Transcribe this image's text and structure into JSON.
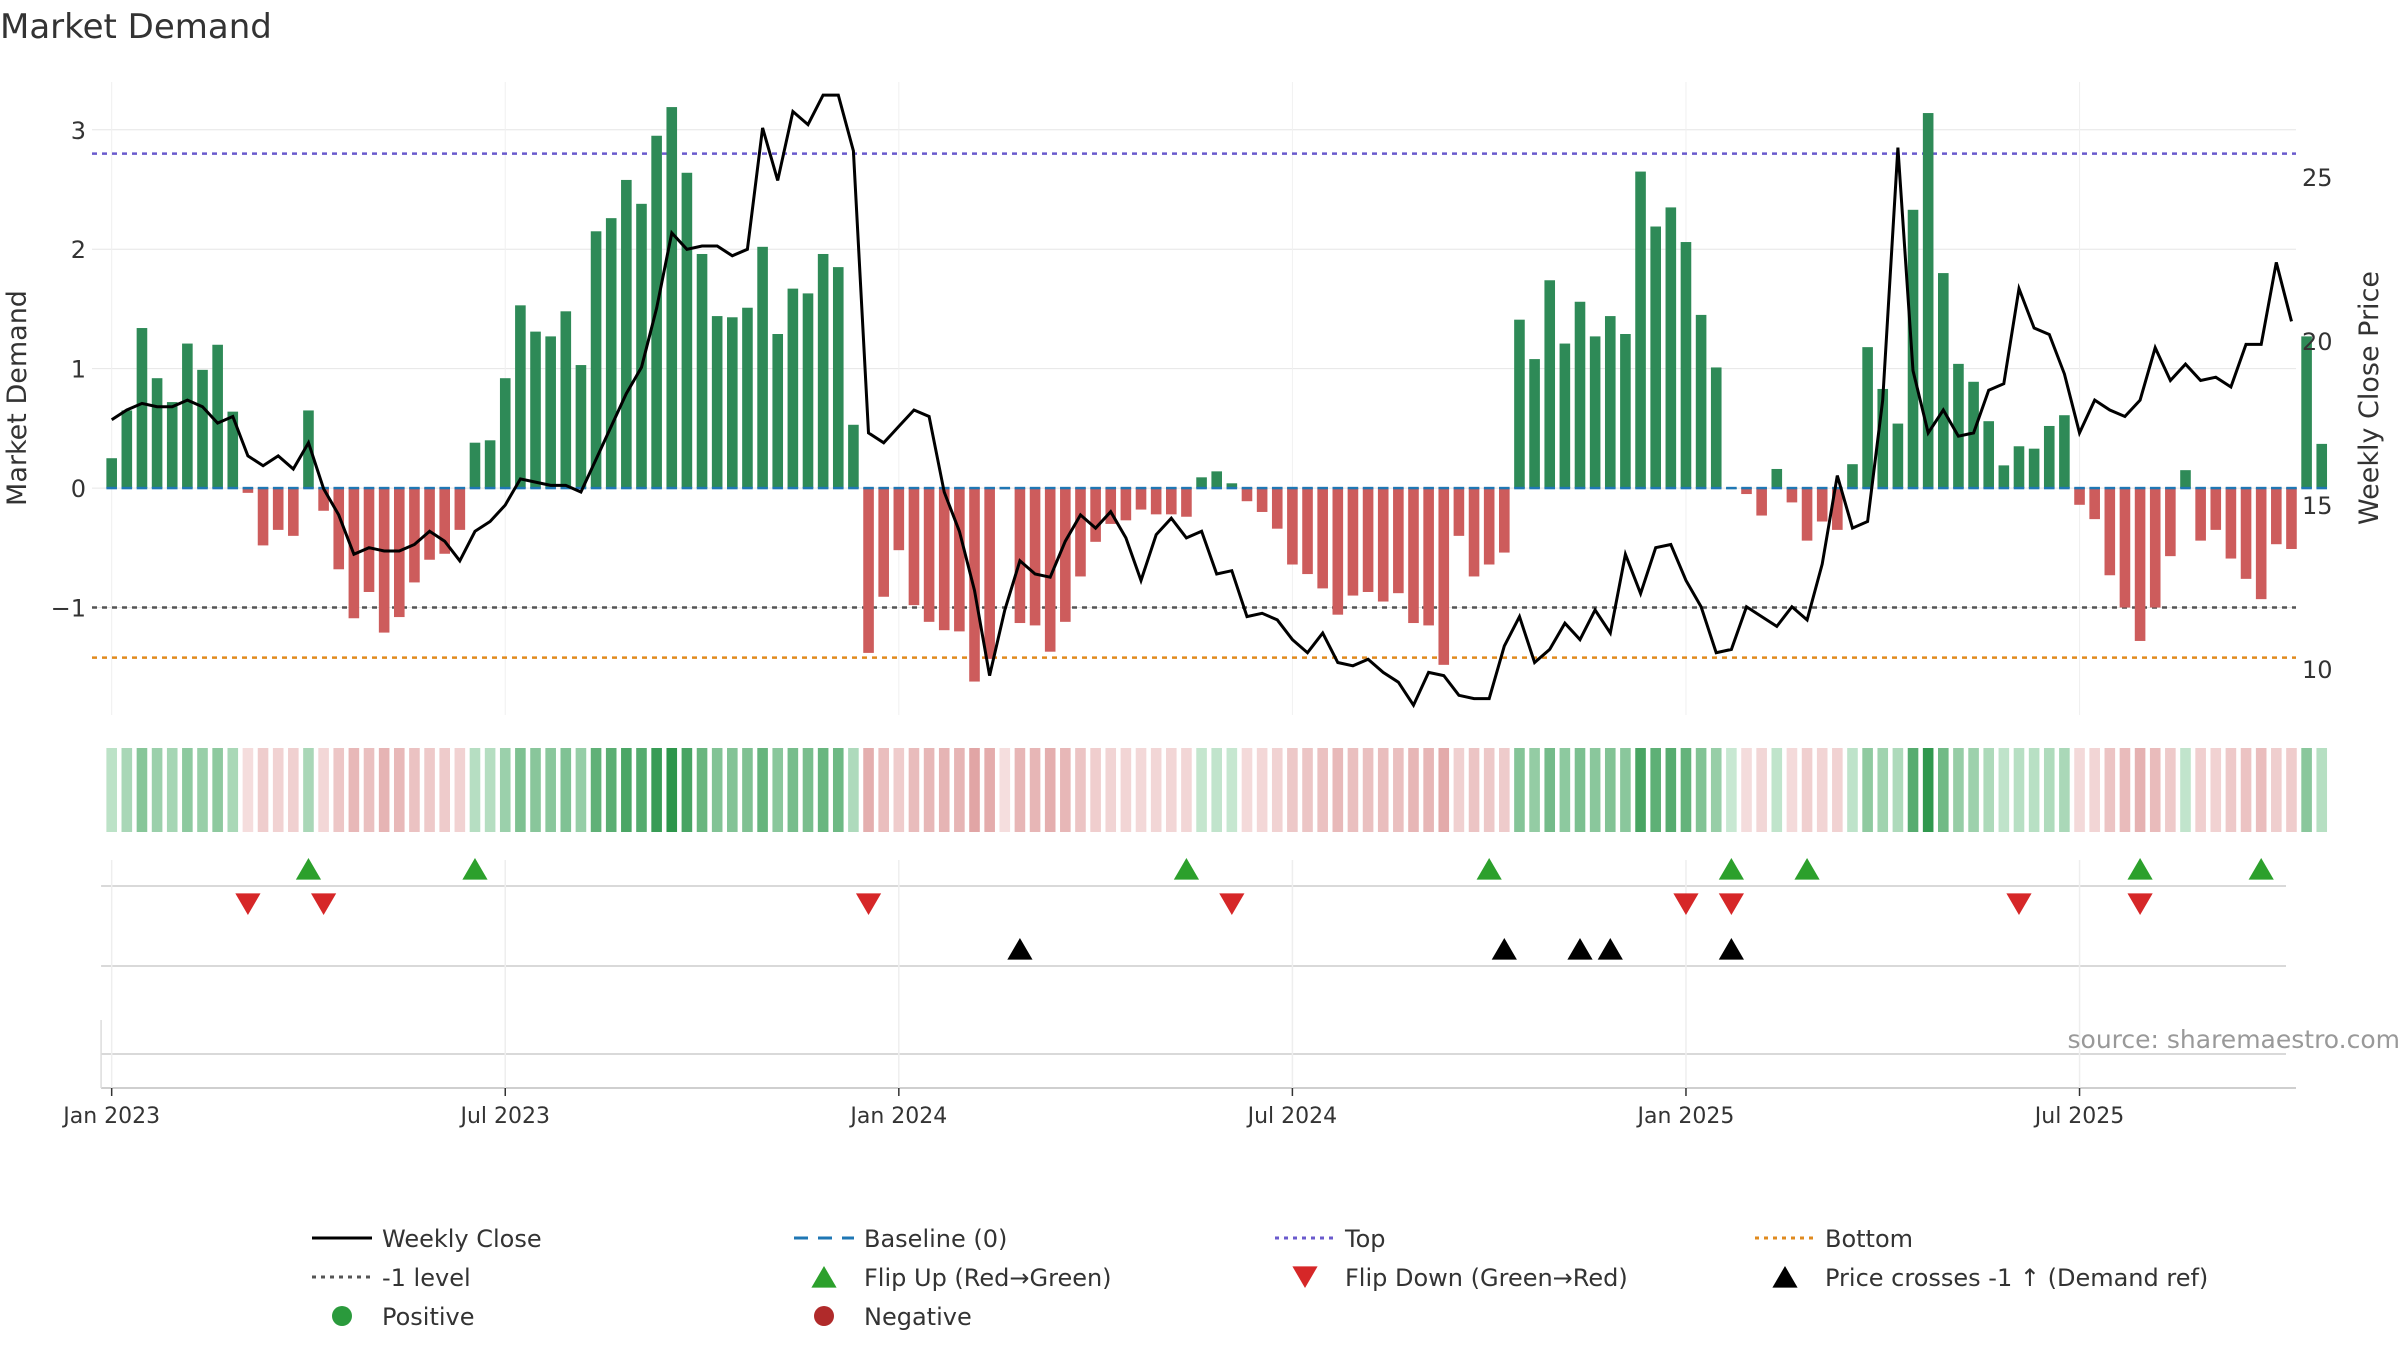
{
  "chart_data": {
    "type": "bar",
    "title": "Market Demand",
    "ylabel": "Market Demand",
    "y2label": "Weekly Close Price",
    "source": "source: sharemaestro.com",
    "ylim": [
      -1.9,
      3.4
    ],
    "y2lim": [
      8.6,
      27.9
    ],
    "yticks": [
      -1,
      0,
      1,
      2,
      3
    ],
    "ytick_labels": [
      "−1",
      "0",
      "1",
      "2",
      "3"
    ],
    "y2ticks": [
      10,
      15,
      20,
      25
    ],
    "y2tick_labels": [
      "10",
      "15",
      "20",
      "25"
    ],
    "xlim": [
      -1.3,
      144.3
    ],
    "xticks": [
      0,
      26,
      52,
      78,
      104,
      130
    ],
    "xtick_labels": [
      "Jan 2023",
      "Jul 2023",
      "Jan 2024",
      "Jul 2024",
      "Jan 2025",
      "Jul 2025"
    ],
    "levels": {
      "top": 2.8,
      "bottom": -1.42,
      "minus_one": -1,
      "baseline": 0
    },
    "demand": [
      0.25,
      0.65,
      1.34,
      0.92,
      0.72,
      1.21,
      0.99,
      1.2,
      0.64,
      -0.04,
      -0.48,
      -0.35,
      -0.4,
      0.65,
      -0.19,
      -0.68,
      -1.09,
      -0.87,
      -1.21,
      -1.08,
      -0.79,
      -0.6,
      -0.55,
      -0.35,
      0.38,
      0.4,
      0.92,
      1.53,
      1.31,
      1.27,
      1.48,
      1.03,
      2.15,
      2.26,
      2.58,
      2.38,
      2.95,
      3.19,
      2.64,
      1.96,
      1.44,
      1.43,
      1.51,
      2.02,
      1.29,
      1.67,
      1.63,
      1.96,
      1.85,
      0.53,
      -1.38,
      -0.91,
      -0.52,
      -0.98,
      -1.12,
      -1.19,
      -1.2,
      -1.62,
      -1.43,
      -0.01,
      -1.13,
      -1.15,
      -1.37,
      -1.12,
      -0.74,
      -0.45,
      -0.3,
      -0.27,
      -0.18,
      -0.22,
      -0.22,
      -0.24,
      0.09,
      0.14,
      0.04,
      -0.11,
      -0.2,
      -0.34,
      -0.64,
      -0.72,
      -0.84,
      -1.06,
      -0.9,
      -0.87,
      -0.95,
      -0.88,
      -1.13,
      -1.15,
      -1.48,
      -0.4,
      -0.74,
      -0.64,
      -0.54,
      1.41,
      1.08,
      1.74,
      1.21,
      1.56,
      1.27,
      1.44,
      1.29,
      2.65,
      2.19,
      2.35,
      2.06,
      1.45,
      1.01,
      0.0,
      -0.05,
      -0.23,
      0.16,
      -0.12,
      -0.44,
      -0.28,
      -0.35,
      0.2,
      1.18,
      0.83,
      0.54,
      2.33,
      3.14,
      1.8,
      1.04,
      0.89,
      0.56,
      0.19,
      0.35,
      0.33,
      0.52,
      0.61,
      -0.14,
      -0.26,
      -0.73,
      -1.0,
      -1.28,
      -1.0,
      -0.57,
      0.15,
      -0.44,
      -0.35,
      -0.59,
      -0.76,
      -0.93,
      -0.47,
      -0.51,
      1.27,
      0.37
    ],
    "close": [
      17.6,
      17.9,
      18.1,
      18.0,
      18.0,
      18.2,
      18.0,
      17.5,
      17.7,
      16.5,
      16.2,
      16.5,
      16.1,
      16.9,
      15.5,
      14.7,
      13.5,
      13.7,
      13.6,
      13.6,
      13.8,
      14.2,
      13.9,
      13.3,
      14.2,
      14.5,
      15.0,
      15.8,
      15.7,
      15.6,
      15.6,
      15.4,
      16.4,
      17.4,
      18.4,
      19.2,
      21.0,
      23.3,
      22.8,
      22.9,
      22.9,
      22.6,
      22.8,
      26.5,
      24.9,
      27.0,
      26.6,
      27.5,
      27.5,
      25.8,
      17.2,
      16.9,
      17.4,
      17.9,
      17.7,
      15.4,
      14.2,
      12.4,
      9.8,
      11.8,
      13.3,
      12.9,
      12.8,
      13.9,
      14.7,
      14.3,
      14.8,
      14.0,
      12.7,
      14.1,
      14.6,
      14.0,
      14.2,
      12.9,
      13.0,
      11.6,
      11.7,
      11.5,
      10.9,
      10.5,
      11.1,
      10.2,
      10.1,
      10.3,
      9.9,
      9.6,
      8.9,
      9.9,
      9.8,
      9.2,
      9.1,
      9.1,
      10.7,
      11.6,
      10.2,
      10.6,
      11.4,
      10.9,
      11.8,
      11.1,
      13.5,
      12.3,
      13.7,
      13.8,
      12.7,
      11.9,
      10.5,
      10.6,
      11.9,
      11.6,
      11.3,
      11.9,
      11.5,
      13.2,
      15.9,
      14.3,
      14.5,
      18.2,
      25.9,
      19.1,
      17.2,
      17.9,
      17.1,
      17.2,
      18.5,
      18.7,
      21.6,
      20.4,
      20.2,
      19.0,
      17.2,
      18.2,
      17.9,
      17.7,
      18.2,
      19.8,
      18.8,
      19.3,
      18.8,
      18.9,
      18.6,
      19.9,
      19.9,
      22.4,
      20.6
    ],
    "flip_up": [
      13,
      24,
      71,
      91,
      107,
      112,
      134,
      142
    ],
    "flip_down": [
      9,
      14,
      50,
      74,
      104,
      107,
      126,
      134
    ],
    "price_cross": [
      60,
      92,
      97,
      99,
      107
    ],
    "legend": [
      {
        "label": "Weekly Close",
        "kind": "line",
        "color": "#000000"
      },
      {
        "label": "Baseline (0)",
        "kind": "dash",
        "color": "#1f77b4"
      },
      {
        "label": "Top",
        "kind": "dot",
        "color": "#6a5acd"
      },
      {
        "label": "Bottom",
        "kind": "dot",
        "color": "#e08a1e"
      },
      {
        "label": "-1 level",
        "kind": "dot",
        "color": "#555555"
      },
      {
        "label": "Flip Up (Red→Green)",
        "kind": "tri-up",
        "color": "#2ca02c"
      },
      {
        "label": "Flip Down (Green→Red)",
        "kind": "tri-down",
        "color": "#d62728"
      },
      {
        "label": "Price crosses -1 ↑ (Demand ref)",
        "kind": "tri-up",
        "color": "#000000"
      },
      {
        "label": "Positive",
        "kind": "circle",
        "color": "#2a9a3c"
      },
      {
        "label": "Negative",
        "kind": "circle",
        "color": "#b02a2a"
      }
    ],
    "colors": {
      "positive_bar": "#2e8a57",
      "negative_bar": "#cd5c5c",
      "close_line": "#000000",
      "baseline": "#1f77b4",
      "top": "#6a5acd",
      "bottom": "#e08a1e",
      "minus_one": "#555555",
      "flip_up": "#2ca02c",
      "flip_down": "#d62728",
      "cross": "#000000",
      "grid": "#e6e6e6"
    }
  }
}
